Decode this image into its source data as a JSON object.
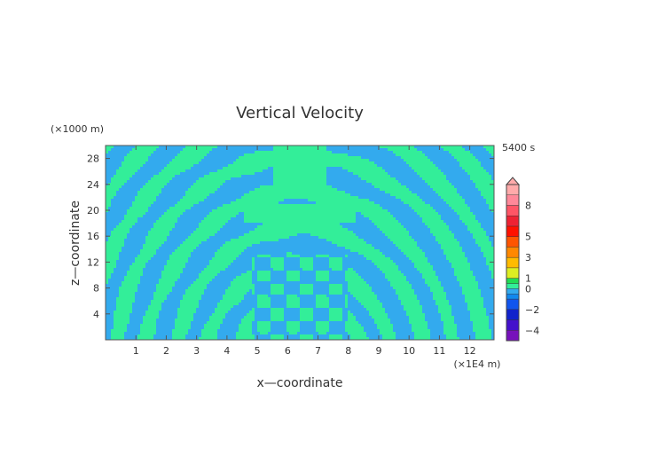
{
  "chart_data": {
    "type": "heatmap",
    "title": "Vertical Velocity",
    "xlabel": "x—coordinate",
    "ylabel": "z—coordinate",
    "x_unit": "(×1E4 m)",
    "y_unit": "(×1000 m)",
    "time_label": "5400 s",
    "xlim": [
      0,
      12.8
    ],
    "ylim": [
      0,
      30
    ],
    "x_ticks": [
      "1",
      "2",
      "3",
      "4",
      "5",
      "6",
      "7",
      "8",
      "9",
      "10",
      "11",
      "12"
    ],
    "x_tick_values": [
      1,
      2,
      3,
      4,
      5,
      6,
      7,
      8,
      9,
      10,
      11,
      12
    ],
    "y_ticks": [
      "4",
      "8",
      "12",
      "16",
      "20",
      "24",
      "28"
    ],
    "y_tick_values": [
      4,
      8,
      12,
      16,
      20,
      24,
      28
    ],
    "field_colors": {
      "negative": "#33aaee",
      "positive": "#33ee99"
    },
    "colorbar": {
      "labels": [
        "8",
        "5",
        "3",
        "1",
        "0",
        "−2",
        "−4"
      ],
      "label_values": [
        8,
        5,
        3,
        1,
        0,
        -2,
        -4
      ],
      "range": [
        -5,
        10
      ],
      "segments": [
        {
          "from": -5,
          "to": -4,
          "color": "#7711bb"
        },
        {
          "from": -4,
          "to": -3,
          "color": "#4411cc"
        },
        {
          "from": -3,
          "to": -2,
          "color": "#1122cc"
        },
        {
          "from": -2,
          "to": -1,
          "color": "#1155ee"
        },
        {
          "from": -1,
          "to": -0.5,
          "color": "#1188ee"
        },
        {
          "from": -0.5,
          "to": 0,
          "color": "#33aaee"
        },
        {
          "from": 0,
          "to": 0.5,
          "color": "#33ee99"
        },
        {
          "from": 0.5,
          "to": 1,
          "color": "#22dd55"
        },
        {
          "from": 1,
          "to": 2,
          "color": "#ddee22"
        },
        {
          "from": 2,
          "to": 3,
          "color": "#ffbb00"
        },
        {
          "from": 3,
          "to": 4,
          "color": "#ff8800"
        },
        {
          "from": 4,
          "to": 5,
          "color": "#ff5500"
        },
        {
          "from": 5,
          "to": 6,
          "color": "#ff1100"
        },
        {
          "from": 6,
          "to": 7,
          "color": "#ee2233"
        },
        {
          "from": 7,
          "to": 8,
          "color": "#ff5566"
        },
        {
          "from": 8,
          "to": 9,
          "color": "#ff8899"
        },
        {
          "from": 9,
          "to": 10,
          "color": "#ffaaaa"
        }
      ]
    }
  }
}
